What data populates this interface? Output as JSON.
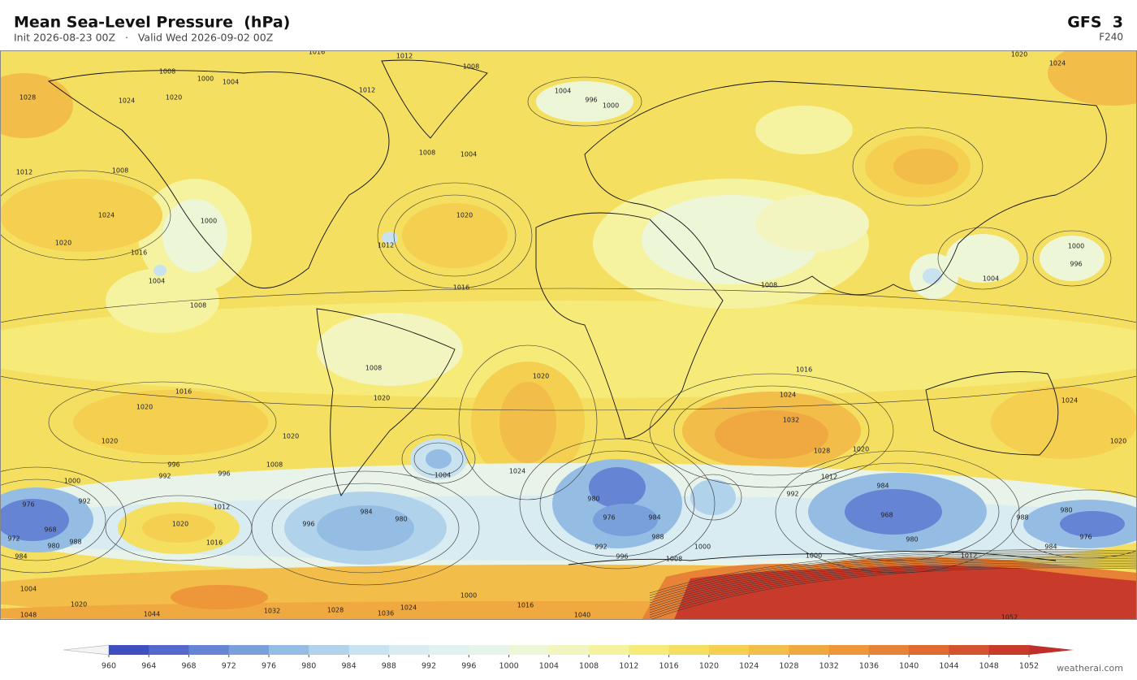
{
  "header": {
    "title": "Mean Sea-Level Pressure  (hPa)",
    "subtitle": "Init 2026-08-23 00Z   ·   Valid Wed 2026-09-02 00Z",
    "model": "GFS  3",
    "forecast_hour": "F240"
  },
  "map": {
    "contour_labels": [
      "1016",
      "1012",
      "1020",
      "1024",
      "1008",
      "1000",
      "1004",
      "1012",
      "1008",
      "1004",
      "996",
      "1000",
      "1028",
      "1024",
      "1020",
      "1008",
      "1004",
      "1012",
      "1008",
      "1024",
      "1000",
      "1020",
      "1016",
      "1004",
      "1008",
      "1012",
      "1020",
      "1016",
      "1008",
      "1000",
      "996",
      "1004",
      "1008",
      "1016",
      "1020",
      "1020",
      "1020",
      "1016",
      "1024",
      "1032",
      "1028",
      "1020",
      "1024",
      "1020",
      "1020",
      "1020",
      "1008",
      "996",
      "992",
      "996",
      "1000",
      "992",
      "1012",
      "1020",
      "1016",
      "976",
      "968",
      "972",
      "980",
      "988",
      "984",
      "1004",
      "1020",
      "1048",
      "1044",
      "1032",
      "1028",
      "1036",
      "1024",
      "1000",
      "1016",
      "1040",
      "1052",
      "984",
      "980",
      "996",
      "1004",
      "1024",
      "980",
      "976",
      "984",
      "988",
      "992",
      "996",
      "1000",
      "1008",
      "992",
      "984",
      "968",
      "980",
      "988",
      "980",
      "976",
      "984",
      "1012",
      "1000",
      "1012"
    ]
  },
  "colorbar": {
    "ticks": [
      960,
      964,
      968,
      972,
      976,
      980,
      984,
      988,
      992,
      996,
      1000,
      1004,
      1008,
      1012,
      1016,
      1020,
      1024,
      1028,
      1032,
      1036,
      1040,
      1044,
      1048,
      1052
    ],
    "colors": [
      "#3f4fc0",
      "#5468cc",
      "#6585d4",
      "#7aa0db",
      "#95bde4",
      "#b0d2ea",
      "#c8e2ef",
      "#d8ecf2",
      "#e1f0f0",
      "#e8f3ea",
      "#eef6d8",
      "#f3f5c0",
      "#f5f2a0",
      "#f6ea78",
      "#f5df60",
      "#f4cf50",
      "#f2bd48",
      "#f0a840",
      "#ee963a",
      "#e88236",
      "#e06a32",
      "#d5522e",
      "#c83a2a"
    ],
    "under_color": "#f4f4f4",
    "over_color": "#c0302a"
  },
  "footer": {
    "credit": "weatherai.com"
  }
}
